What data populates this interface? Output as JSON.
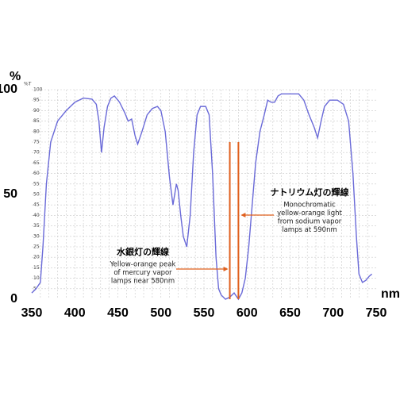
{
  "chart_data": {
    "type": "line",
    "y_unit": "%",
    "y_unit_small": "%T",
    "x_unit": "nm",
    "x": [
      350,
      355,
      360,
      363,
      367,
      372,
      380,
      390,
      400,
      410,
      420,
      425,
      428,
      431,
      434,
      438,
      442,
      446,
      452,
      458,
      462,
      466,
      470,
      473,
      478,
      484,
      490,
      496,
      500,
      505,
      510,
      514,
      518,
      520,
      523,
      526,
      530,
      534,
      538,
      542,
      546,
      552,
      556,
      560,
      564,
      567,
      570,
      575,
      580,
      585,
      590,
      594,
      598,
      602,
      606,
      610,
      615,
      620,
      624,
      628,
      632,
      636,
      640,
      650,
      660,
      666,
      672,
      678,
      682,
      686,
      690,
      696,
      705,
      712,
      718,
      723,
      727,
      730,
      734,
      738,
      742,
      745
    ],
    "values": [
      3,
      5,
      8,
      25,
      55,
      75,
      85,
      90,
      94,
      96,
      95.5,
      93,
      85,
      70,
      82,
      92,
      96,
      97,
      94,
      89,
      85,
      86,
      78,
      74,
      80,
      88,
      91,
      92,
      90,
      80,
      58,
      45,
      55,
      52,
      40,
      30,
      25,
      40,
      70,
      88,
      92,
      92,
      88,
      60,
      20,
      5,
      2,
      0,
      1,
      3,
      0,
      3,
      10,
      25,
      45,
      65,
      80,
      88,
      95,
      94,
      94,
      97,
      98,
      98,
      98,
      95,
      88,
      82,
      77,
      85,
      92,
      95,
      95,
      93,
      85,
      60,
      30,
      12,
      8,
      9,
      11,
      12
    ],
    "color": "#6a6ad8",
    "xlim": [
      350,
      750
    ],
    "ylim": [
      0,
      100
    ],
    "xticks": [
      350,
      400,
      450,
      500,
      550,
      600,
      650,
      700,
      750
    ],
    "yticks": [
      0,
      50,
      100
    ],
    "yticks_minor": [
      5,
      10,
      15,
      20,
      25,
      30,
      35,
      40,
      45,
      50,
      55,
      60,
      65,
      70,
      75,
      80,
      85,
      90,
      95,
      100
    ],
    "xgrid": [
      360,
      370,
      380,
      390,
      400,
      410,
      420,
      430,
      440,
      450,
      460,
      470,
      480,
      490,
      500,
      510,
      520,
      530,
      540,
      550,
      560,
      570,
      580,
      590,
      600,
      610,
      620,
      630,
      640,
      650,
      660,
      670,
      680,
      690,
      700,
      710,
      720,
      730,
      740
    ],
    "grid": true,
    "markers": [
      {
        "x": 580,
        "color": "#e0601e",
        "title": "水銀灯の輝線",
        "lines": [
          "Yellow-orange peak",
          "of mercury vapor",
          "lamps near 580nm"
        ]
      },
      {
        "x": 590,
        "color": "#e0601e",
        "title": "ナトリウム灯の輝線",
        "lines": [
          "Monochromatic",
          "yellow-orange light",
          "from sodium vapor",
          "lamps at 590nm"
        ]
      }
    ]
  }
}
